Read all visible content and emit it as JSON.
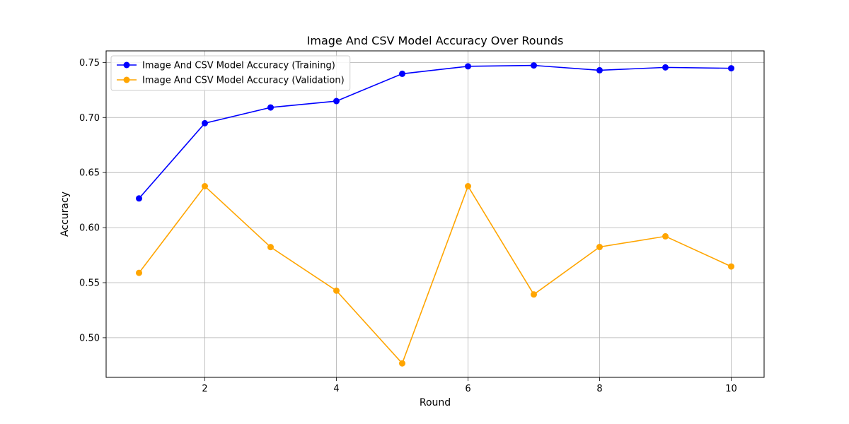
{
  "chart_data": {
    "type": "line",
    "title": "Image And CSV Model Accuracy Over Rounds",
    "xlabel": "Round",
    "ylabel": "Accuracy",
    "x": [
      1,
      2,
      3,
      4,
      5,
      6,
      7,
      8,
      9,
      10
    ],
    "xlim": [
      0.5,
      10.5
    ],
    "ylim": [
      0.464,
      0.7605
    ],
    "xticks": [
      2,
      4,
      6,
      8,
      10
    ],
    "xtick_labels": [
      "2",
      "4",
      "6",
      "8",
      "10"
    ],
    "yticks": [
      0.5,
      0.55,
      0.6,
      0.65,
      0.7,
      0.75
    ],
    "ytick_labels": [
      "0.50",
      "0.55",
      "0.60",
      "0.65",
      "0.70",
      "0.75"
    ],
    "grid": true,
    "legend_position": "top-left",
    "series": [
      {
        "name": "Image And CSV  Model Accuracy (Training)",
        "color": "#0000ff",
        "marker": "circle",
        "values": [
          0.6265,
          0.6948,
          0.7091,
          0.7149,
          0.7397,
          0.7465,
          0.7473,
          0.7429,
          0.7455,
          0.7447
        ]
      },
      {
        "name": "Image And CSV Model Accuracy (Validation)",
        "color": "#ffa500",
        "marker": "circle",
        "values": [
          0.5589,
          0.6376,
          0.5823,
          0.5427,
          0.4767,
          0.6376,
          0.5393,
          0.5824,
          0.5921,
          0.5647
        ]
      }
    ]
  }
}
